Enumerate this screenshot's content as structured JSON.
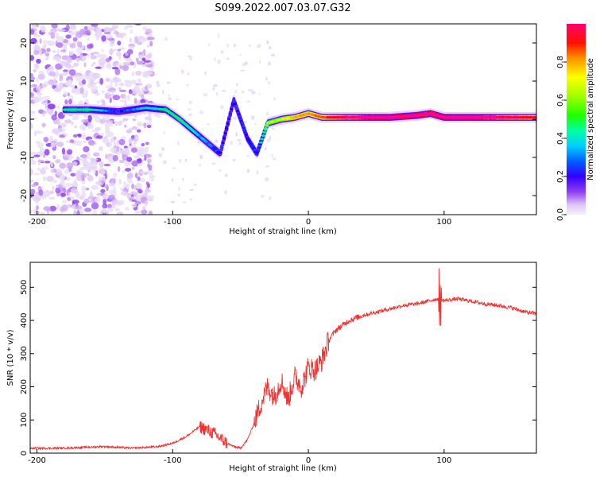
{
  "figure_title": "S099.2022.007.03.07.G32",
  "colors": {
    "snr_line": "#ee3333",
    "spectrum_ridge": "#ff0000",
    "colormap": [
      "#f0f0f0",
      "#e4d0f8",
      "#c89cf0",
      "#8f3ff0",
      "#5a00ff",
      "#0000ff",
      "#00cfff",
      "#00ff40",
      "#a0ff00",
      "#ffff00",
      "#ff8000",
      "#ff0000",
      "#ff00a0"
    ]
  },
  "chart_data": [
    {
      "type": "heatmap",
      "title": "",
      "xlabel": "Height of straight line (km)",
      "ylabel": "Frequency (Hz)",
      "xlim": [
        -205,
        168
      ],
      "ylim": [
        -25,
        25
      ],
      "xticks": [
        -200,
        -100,
        0,
        100
      ],
      "yticks": [
        20,
        10,
        0,
        -10,
        -20
      ],
      "colorbar": {
        "label": "Normalized spectral amplitude",
        "range": [
          0,
          1
        ],
        "ticks": [
          "0.0",
          "0.2",
          "0.4",
          "0.6",
          "0.8"
        ]
      },
      "ridge": {
        "description_x": [
          -180,
          -160,
          -140,
          -120,
          -105,
          -95,
          -85,
          -75,
          -65,
          -55,
          -45,
          -38,
          -30,
          -20,
          -10,
          0,
          10,
          30,
          60,
          80,
          90,
          100,
          120,
          140,
          168
        ],
        "frequency_y": [
          2.5,
          2.5,
          2.0,
          3.0,
          2.5,
          0,
          -3,
          -6,
          -9,
          5,
          -5,
          -9,
          -1,
          0,
          0.5,
          1.5,
          0.5,
          0.5,
          0.5,
          1.0,
          1.5,
          0.5,
          0.5,
          0.5,
          0.5
        ],
        "amplitude": [
          0.45,
          0.45,
          0.3,
          0.4,
          0.45,
          0.45,
          0.4,
          0.35,
          0.3,
          0.3,
          0.3,
          0.3,
          0.55,
          0.6,
          0.7,
          0.7,
          0.75,
          0.85,
          0.95,
          0.95,
          0.9,
          0.95,
          0.95,
          0.85,
          0.8
        ]
      },
      "noise_band": [
        -205,
        -115
      ]
    },
    {
      "type": "line",
      "title": "",
      "xlabel": "Height of straight line (km)",
      "ylabel": "SNR (10 * v/v)",
      "xlim": [
        -205,
        168
      ],
      "ylim": [
        0,
        575
      ],
      "xticks": [
        -200,
        -100,
        0,
        100
      ],
      "yticks": [
        0,
        100,
        200,
        300,
        400,
        500
      ],
      "series": [
        {
          "x": [
            -205,
            -180,
            -150,
            -130,
            -110,
            -100,
            -90,
            -80,
            -70,
            -60,
            -55,
            -50,
            -45,
            -40,
            -35,
            -30,
            -25,
            -20,
            -15,
            -10,
            -5,
            0,
            5,
            10,
            15,
            20,
            30,
            40,
            50,
            60,
            70,
            80,
            90,
            95,
            97,
            100,
            110,
            120,
            130,
            140,
            150,
            160,
            168
          ],
          "y": [
            15,
            15,
            20,
            15,
            20,
            30,
            50,
            80,
            60,
            30,
            20,
            15,
            40,
            90,
            150,
            200,
            170,
            220,
            160,
            230,
            200,
            260,
            250,
            280,
            340,
            370,
            400,
            415,
            425,
            435,
            445,
            450,
            460,
            465,
            465,
            460,
            465,
            458,
            450,
            445,
            438,
            425,
            420
          ]
        }
      ]
    }
  ]
}
